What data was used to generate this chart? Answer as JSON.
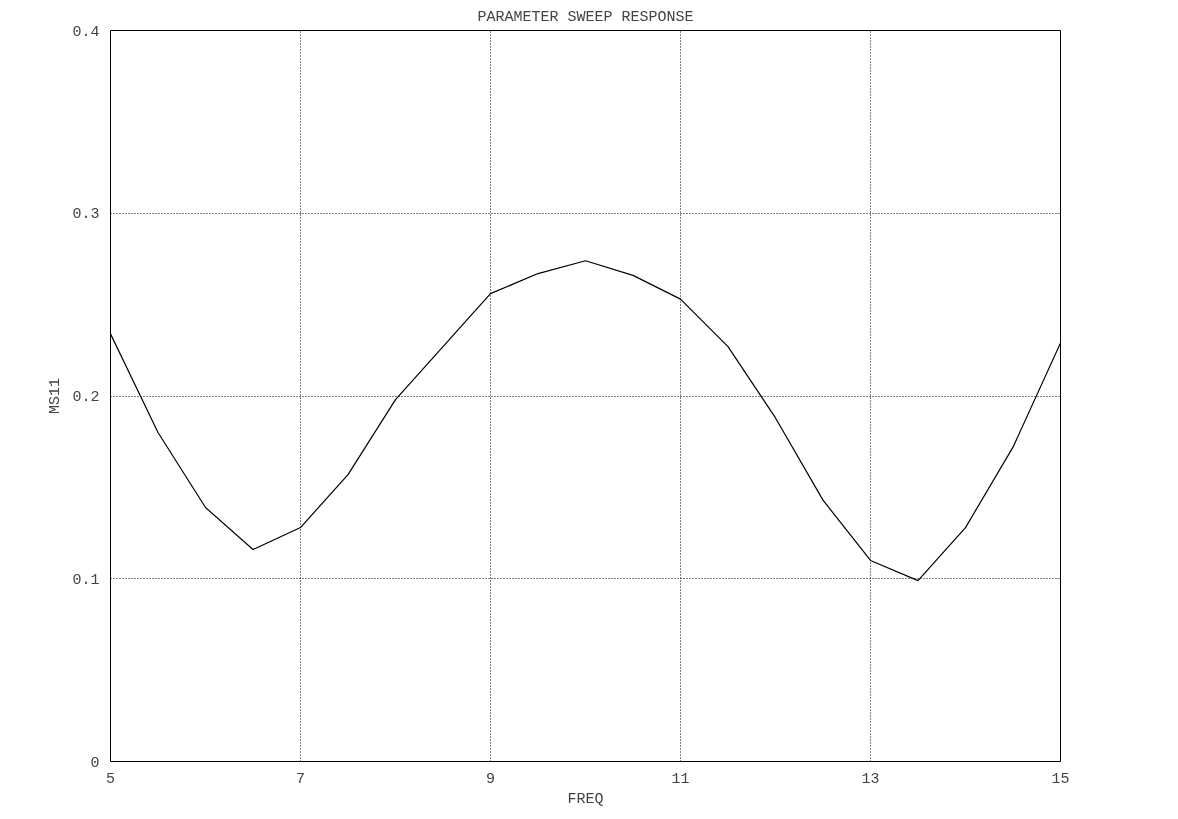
{
  "chart_data": {
    "type": "line",
    "title": "PARAMETER SWEEP RESPONSE",
    "xlabel": "FREQ",
    "ylabel": "MS11",
    "x": [
      5,
      5.5,
      6,
      6.5,
      7,
      7.5,
      8,
      8.5,
      9,
      9.5,
      10,
      10.5,
      11,
      11.5,
      12,
      12.5,
      13,
      13.5,
      14,
      14.5,
      15
    ],
    "series": [
      {
        "color": "#000000",
        "values": [
          0.234,
          0.18,
          0.139,
          0.116,
          0.128,
          0.157,
          0.198,
          0.227,
          0.256,
          0.267,
          0.274,
          0.266,
          0.253,
          0.227,
          0.188,
          0.143,
          0.11,
          0.099,
          0.128,
          0.172,
          0.229
        ]
      }
    ],
    "xlim": [
      5,
      15
    ],
    "ylim": [
      0,
      0.4
    ],
    "xticks": [
      5,
      7,
      9,
      11,
      13,
      15
    ],
    "yticks": [
      0,
      0.1,
      0.2,
      0.3,
      0.4
    ],
    "grid": true,
    "line_style": "solid",
    "marker": "none"
  }
}
